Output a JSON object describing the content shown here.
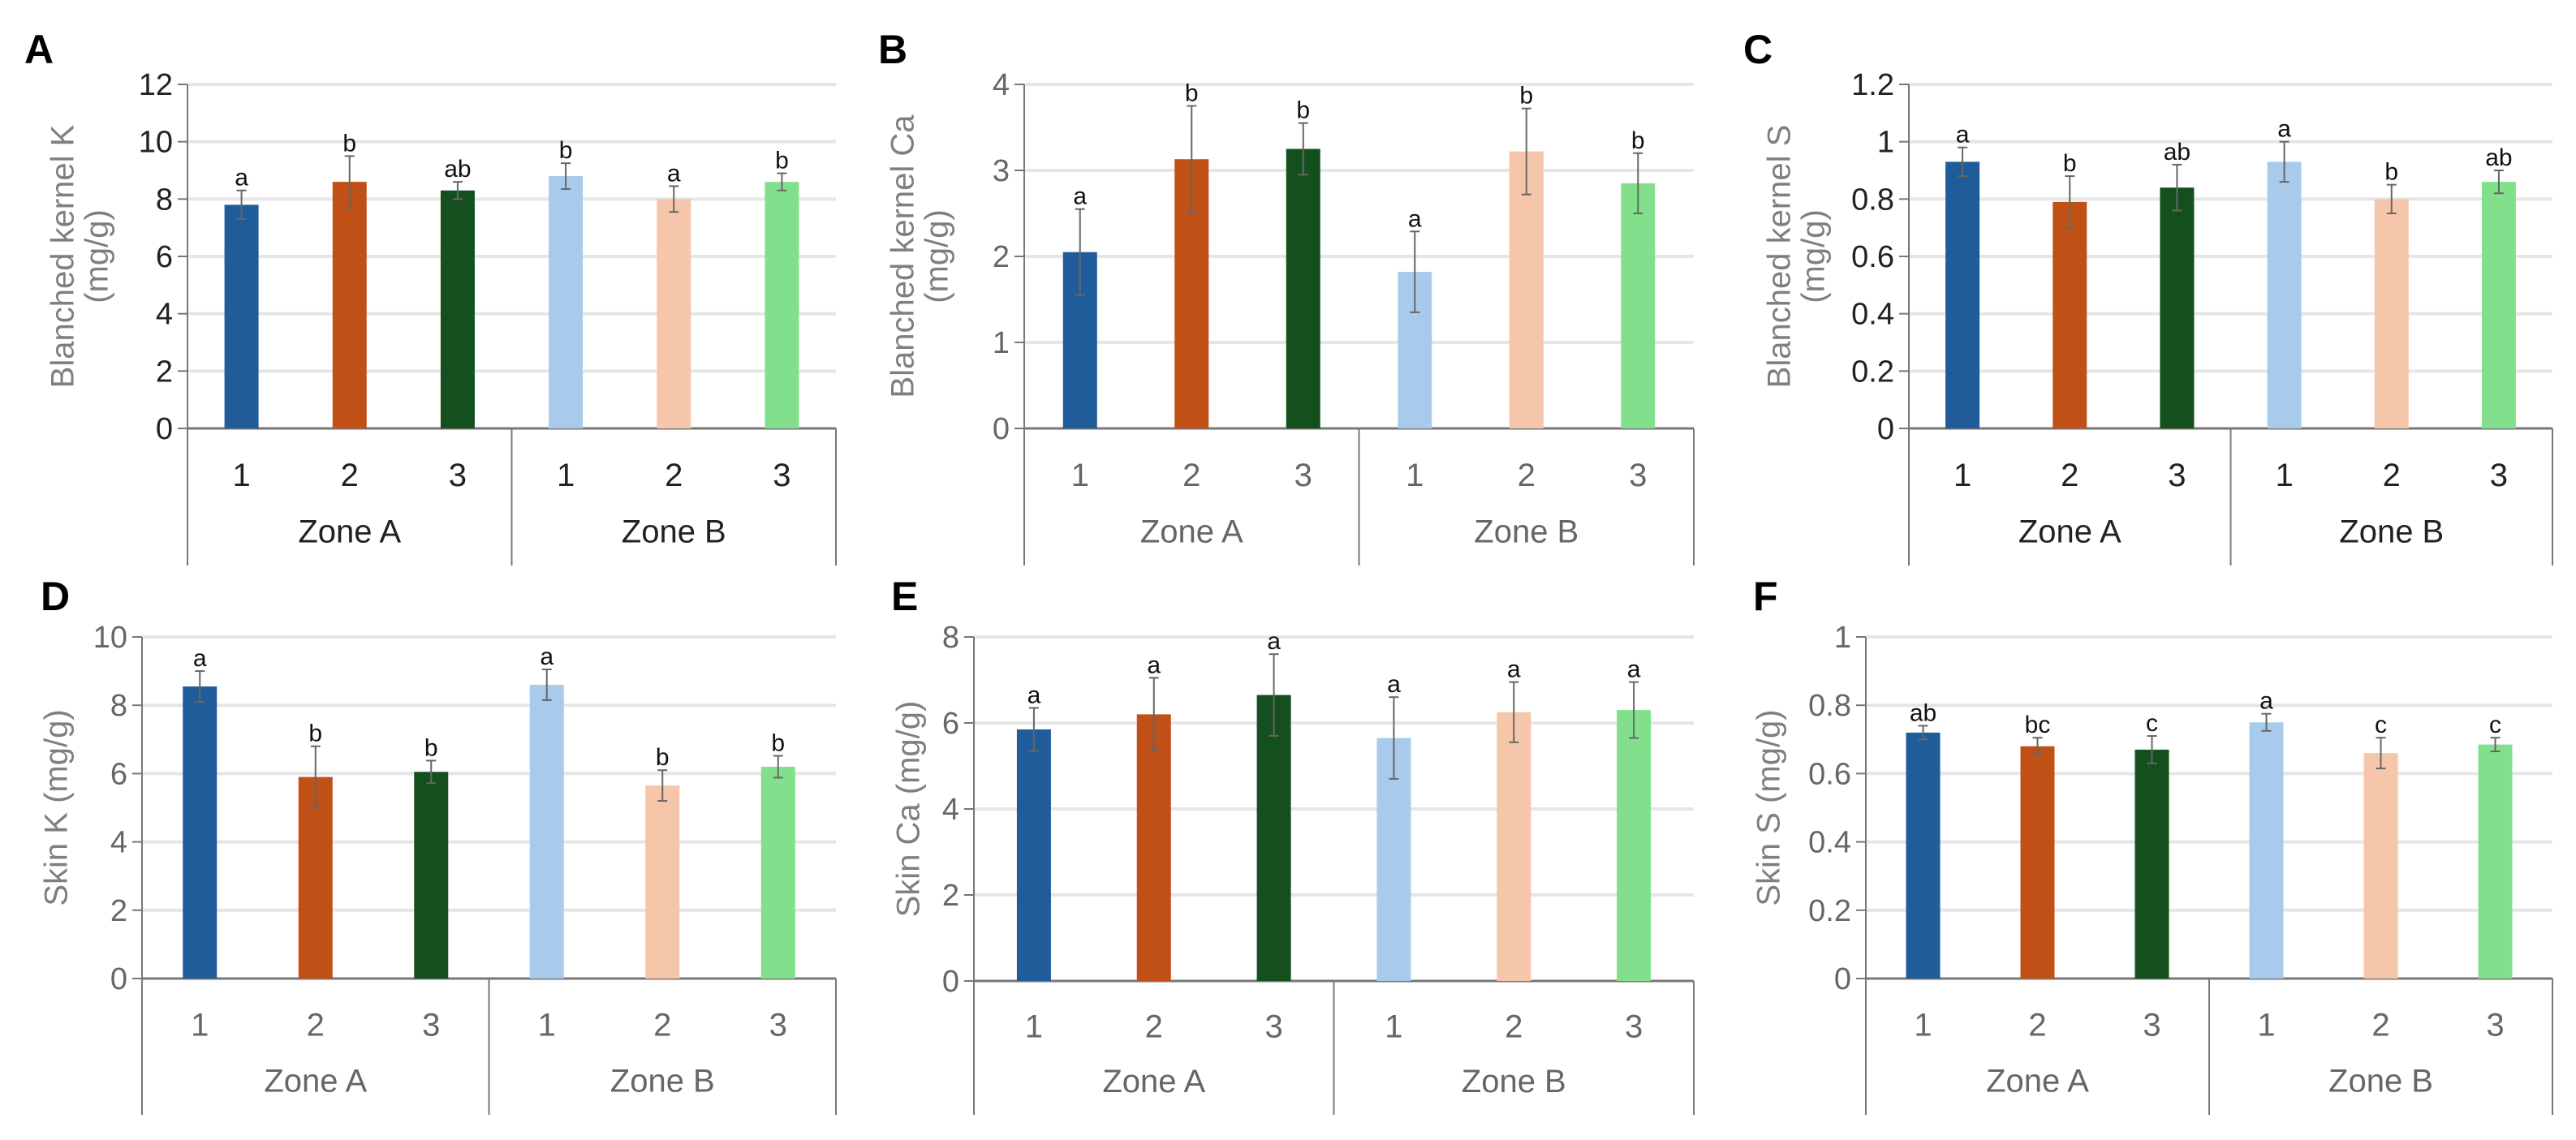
{
  "bar_colors": [
    "#1f5c99",
    "#c05016",
    "#14501e",
    "#a8cbec",
    "#f5c6aa",
    "#82e08c"
  ],
  "chart_data": [
    {
      "type": "bar",
      "panel": "A",
      "ylabel": [
        "Blanched kernel K",
        "(mg/g)"
      ],
      "ylim": [
        0,
        12
      ],
      "yticks": [
        "0",
        "2",
        "4",
        "6",
        "8",
        "10",
        "12"
      ],
      "tick_color": "#222222",
      "groups": [
        "Zone A",
        "Zone B"
      ],
      "categories": [
        "1",
        "2",
        "3",
        "1",
        "2",
        "3"
      ],
      "values": [
        7.8,
        8.6,
        8.3,
        8.8,
        8.0,
        8.6
      ],
      "errors": [
        0.5,
        0.9,
        0.3,
        0.45,
        0.45,
        0.3
      ],
      "letters": [
        "a",
        "b",
        "ab",
        "b",
        "a",
        "b"
      ],
      "grid": true
    },
    {
      "type": "bar",
      "panel": "B",
      "ylabel": [
        "Blanched kernel Ca",
        "(mg/g)"
      ],
      "ylim": [
        0,
        4
      ],
      "yticks": [
        "0",
        "1",
        "2",
        "3",
        "4"
      ],
      "tick_color": "#666666",
      "groups": [
        "Zone A",
        "Zone B"
      ],
      "categories": [
        "1",
        "2",
        "3",
        "1",
        "2",
        "3"
      ],
      "values": [
        2.05,
        3.13,
        3.25,
        1.82,
        3.22,
        2.85
      ],
      "errors": [
        0.5,
        0.62,
        0.3,
        0.47,
        0.5,
        0.35
      ],
      "letters": [
        "a",
        "b",
        "b",
        "a",
        "b",
        "b"
      ],
      "grid": true
    },
    {
      "type": "bar",
      "panel": "C",
      "ylabel": [
        "Blanched kernel S",
        "(mg/g)"
      ],
      "ylim": [
        0,
        1.2
      ],
      "yticks": [
        "0",
        "0.2",
        "0.4",
        "0.6",
        "0.8",
        "1",
        "1.2"
      ],
      "tick_color": "#222222",
      "groups": [
        "Zone A",
        "Zone B"
      ],
      "categories": [
        "1",
        "2",
        "3",
        "1",
        "2",
        "3"
      ],
      "values": [
        0.93,
        0.79,
        0.84,
        0.93,
        0.8,
        0.86
      ],
      "errors": [
        0.05,
        0.09,
        0.08,
        0.07,
        0.05,
        0.04
      ],
      "letters": [
        "a",
        "b",
        "ab",
        "a",
        "b",
        "ab"
      ],
      "grid": true
    },
    {
      "type": "bar",
      "panel": "D",
      "ylabel": [
        "Skin K (mg/g)"
      ],
      "ylim": [
        0,
        10
      ],
      "yticks": [
        "0",
        "2",
        "4",
        "6",
        "8",
        "10"
      ],
      "tick_color": "#666666",
      "groups": [
        "Zone A",
        "Zone B"
      ],
      "categories": [
        "1",
        "2",
        "3",
        "1",
        "2",
        "3"
      ],
      "values": [
        8.55,
        5.9,
        6.05,
        8.6,
        5.65,
        6.2
      ],
      "errors": [
        0.45,
        0.9,
        0.33,
        0.45,
        0.45,
        0.32
      ],
      "letters": [
        "a",
        "b",
        "b",
        "a",
        "b",
        "b"
      ],
      "grid": true
    },
    {
      "type": "bar",
      "panel": "E",
      "ylabel": [
        "Skin Ca (mg/g)"
      ],
      "ylim": [
        0,
        8
      ],
      "yticks": [
        "0",
        "2",
        "4",
        "6",
        "8"
      ],
      "tick_color": "#666666",
      "groups": [
        "Zone A",
        "Zone B"
      ],
      "categories": [
        "1",
        "2",
        "3",
        "1",
        "2",
        "3"
      ],
      "values": [
        5.85,
        6.2,
        6.65,
        5.65,
        6.25,
        6.3
      ],
      "errors": [
        0.5,
        0.85,
        0.95,
        0.95,
        0.7,
        0.65
      ],
      "letters": [
        "a",
        "a",
        "a",
        "a",
        "a",
        "a"
      ],
      "grid": true
    },
    {
      "type": "bar",
      "panel": "F",
      "ylabel": [
        "Skin S (mg/g)"
      ],
      "ylim": [
        0,
        1
      ],
      "yticks": [
        "0",
        "0.2",
        "0.4",
        "0.6",
        "0.8",
        "1"
      ],
      "tick_color": "#666666",
      "groups": [
        "Zone A",
        "Zone B"
      ],
      "categories": [
        "1",
        "2",
        "3",
        "1",
        "2",
        "3"
      ],
      "values": [
        0.72,
        0.68,
        0.67,
        0.75,
        0.66,
        0.685
      ],
      "errors": [
        0.02,
        0.025,
        0.04,
        0.025,
        0.045,
        0.02
      ],
      "letters": [
        "ab",
        "bc",
        "c",
        "a",
        "c",
        "c"
      ],
      "grid": true
    }
  ]
}
